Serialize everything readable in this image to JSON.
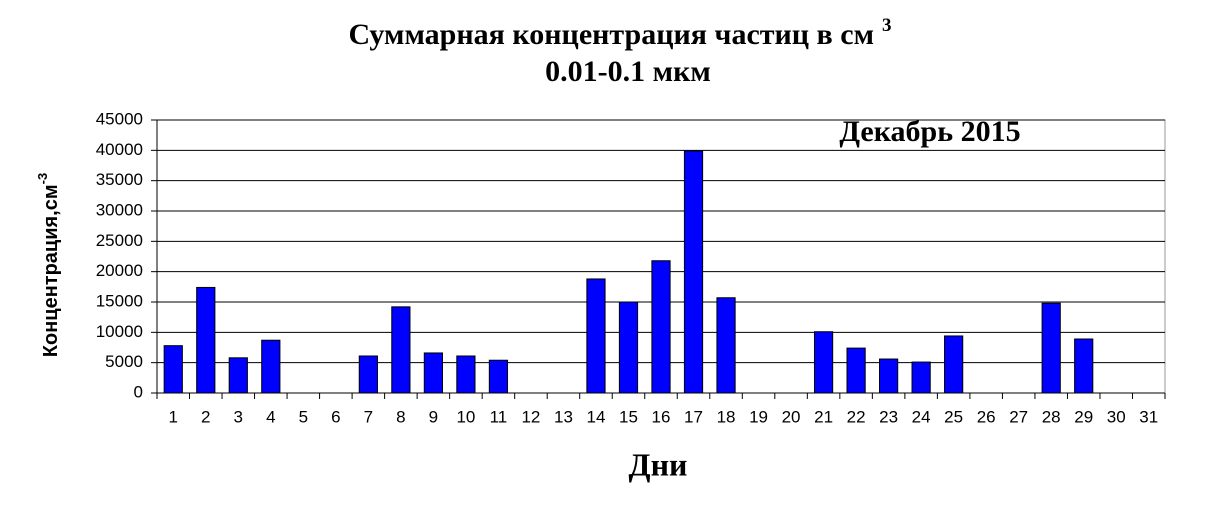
{
  "chart_data": {
    "type": "bar",
    "title": "Суммарная концентрация частиц  в см",
    "title_superscript": "3",
    "subtitle": "0.01-0.1 мкм",
    "annotation": "Декабрь 2015",
    "x_label": "Дни",
    "y_label": "Концентрация,см",
    "y_label_superscript": "-3",
    "categories": [
      "1",
      "2",
      "3",
      "4",
      "5",
      "6",
      "7",
      "8",
      "9",
      "10",
      "11",
      "12",
      "13",
      "14",
      "15",
      "16",
      "17",
      "18",
      "19",
      "20",
      "21",
      "22",
      "23",
      "24",
      "25",
      "26",
      "27",
      "28",
      "29",
      "30",
      "31"
    ],
    "values": [
      7800,
      17400,
      5800,
      8700,
      0,
      0,
      6100,
      14200,
      6600,
      6100,
      5400,
      0,
      0,
      18800,
      15000,
      21800,
      39900,
      15700,
      0,
      0,
      10100,
      7400,
      5600,
      5100,
      9400,
      0,
      0,
      14800,
      8900,
      0,
      0
    ],
    "color": "#0000ff",
    "ylim": [
      0,
      45000
    ],
    "yticks": [
      0,
      5000,
      10000,
      15000,
      20000,
      25000,
      30000,
      35000,
      40000,
      45000
    ],
    "grid": true
  }
}
